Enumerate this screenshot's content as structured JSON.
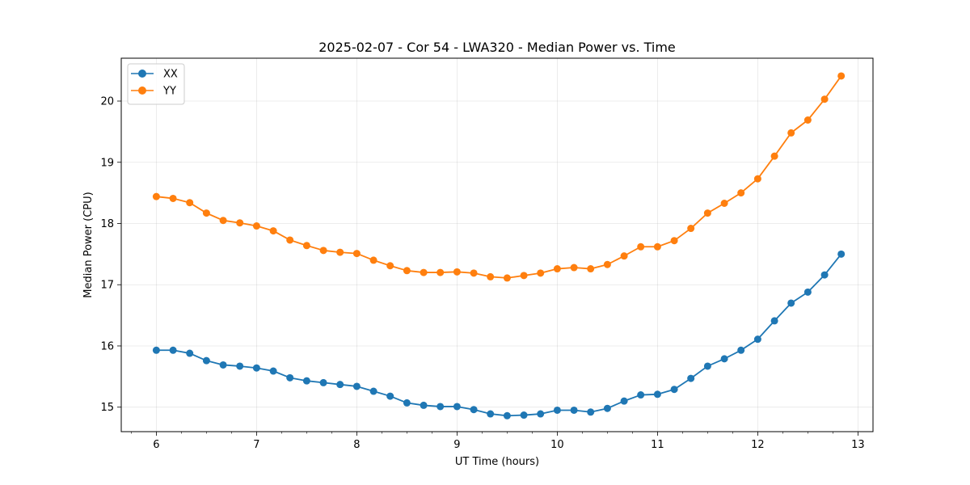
{
  "chart_data": {
    "type": "line",
    "title": "2025-02-07 - Cor 54 - LWA320 - Median Power vs. Time",
    "xlabel": "UT Time (hours)",
    "ylabel": "Median Power (CPU)",
    "xlim": [
      5.65,
      13.15
    ],
    "ylim": [
      14.6,
      20.7
    ],
    "xticks": [
      6,
      7,
      8,
      9,
      10,
      11,
      12,
      13
    ],
    "yticks": [
      15,
      16,
      17,
      18,
      19,
      20
    ],
    "grid": true,
    "legend_position": "top-left",
    "x": [
      6.0,
      6.167,
      6.333,
      6.5,
      6.667,
      6.833,
      7.0,
      7.167,
      7.333,
      7.5,
      7.667,
      7.833,
      8.0,
      8.167,
      8.333,
      8.5,
      8.667,
      8.833,
      9.0,
      9.167,
      9.333,
      9.5,
      9.667,
      9.833,
      10.0,
      10.167,
      10.333,
      10.5,
      10.667,
      10.833,
      11.0,
      11.167,
      11.333,
      11.5,
      11.667,
      11.833,
      12.0,
      12.167,
      12.333,
      12.5,
      12.667,
      12.833
    ],
    "series": [
      {
        "name": "XX",
        "color": "#1f77b4",
        "values": [
          15.93,
          15.93,
          15.88,
          15.76,
          15.69,
          15.67,
          15.64,
          15.59,
          15.48,
          15.43,
          15.4,
          15.37,
          15.34,
          15.26,
          15.18,
          15.07,
          15.03,
          15.01,
          15.01,
          14.96,
          14.89,
          14.86,
          14.87,
          14.89,
          14.95,
          14.95,
          14.92,
          14.98,
          15.1,
          15.2,
          15.21,
          15.29,
          15.47,
          15.67,
          15.79,
          15.93,
          16.11,
          16.41,
          16.7,
          16.88,
          17.16,
          17.5
        ]
      },
      {
        "name": "YY",
        "color": "#ff7f0e",
        "values": [
          18.44,
          18.41,
          18.34,
          18.17,
          18.05,
          18.01,
          17.96,
          17.88,
          17.73,
          17.64,
          17.56,
          17.53,
          17.51,
          17.4,
          17.31,
          17.23,
          17.2,
          17.2,
          17.21,
          17.19,
          17.13,
          17.11,
          17.15,
          17.19,
          17.26,
          17.28,
          17.26,
          17.33,
          17.47,
          17.62,
          17.62,
          17.72,
          17.92,
          18.17,
          18.33,
          18.5,
          18.73,
          19.1,
          19.48,
          19.69,
          20.03,
          20.41
        ]
      }
    ]
  }
}
